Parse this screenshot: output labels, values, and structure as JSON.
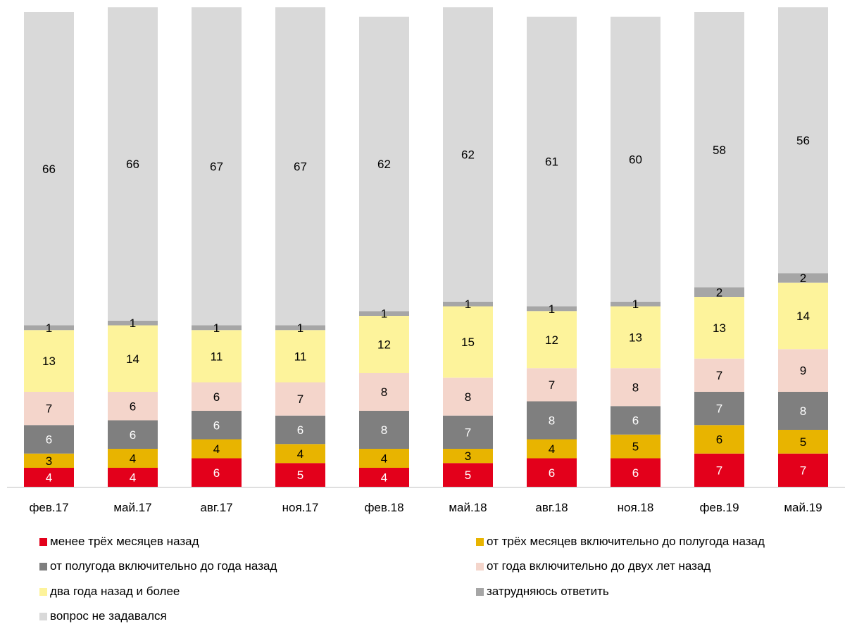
{
  "chart_data": {
    "type": "bar",
    "stacked": true,
    "categories": [
      "фев.17",
      "май.17",
      "авг.17",
      "ноя.17",
      "фев.18",
      "май.18",
      "авг.18",
      "ноя.18",
      "фев.19",
      "май.19"
    ],
    "series": [
      {
        "name": "менее трёх месяцев назад",
        "color": "#e3001b",
        "label_color": "#ffffff",
        "values": [
          4,
          4,
          6,
          5,
          4,
          5,
          6,
          6,
          7,
          7
        ]
      },
      {
        "name": "от трёх месяцев включительно до полугода назад",
        "color": "#e8b400",
        "label_color": "#000000",
        "values": [
          3,
          4,
          4,
          4,
          4,
          3,
          4,
          5,
          6,
          5
        ]
      },
      {
        "name": "от полугода включительно до года назад",
        "color": "#7f7f7f",
        "label_color": "#ffffff",
        "values": [
          6,
          6,
          6,
          6,
          8,
          7,
          8,
          6,
          7,
          8
        ]
      },
      {
        "name": "от года включительно до двух лет назад",
        "color": "#f4d5cb",
        "label_color": "#000000",
        "values": [
          7,
          6,
          6,
          7,
          8,
          8,
          7,
          8,
          7,
          9
        ]
      },
      {
        "name": "два года назад и более",
        "color": "#fdf39b",
        "label_color": "#000000",
        "values": [
          13,
          14,
          11,
          11,
          12,
          15,
          12,
          13,
          13,
          14
        ]
      },
      {
        "name": "затрудняюсь ответить",
        "color": "#a6a6a6",
        "label_color": "#000000",
        "values": [
          1,
          1,
          1,
          1,
          1,
          1,
          1,
          1,
          2,
          2
        ]
      },
      {
        "name": "вопрос не задавался",
        "color": "#d9d9d9",
        "label_color": "#000000",
        "values": [
          66,
          66,
          67,
          67,
          62,
          62,
          61,
          60,
          58,
          56
        ]
      }
    ],
    "ylim": [
      0,
      100
    ],
    "grid": false,
    "legend_position": "bottom"
  }
}
